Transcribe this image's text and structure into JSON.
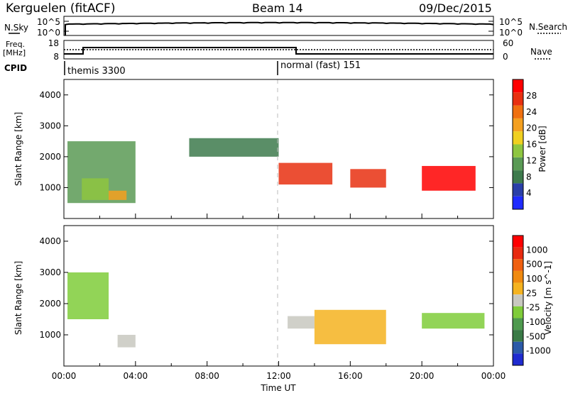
{
  "header": {
    "station": "Kerguelen (fitACF)",
    "beam": "Beam 14",
    "date": "09/Dec/2015"
  },
  "noise_panel": {
    "left_label": "N.Sky",
    "right_label": "N.Search",
    "left_ticks": [
      "10^5",
      "10^0"
    ],
    "right_ticks": [
      "10^5",
      "10^0"
    ]
  },
  "freq_panel": {
    "left_label_1": "Freq.",
    "left_label_2": "[MHz]",
    "right_label": "Nave",
    "left_ticks": [
      "18",
      "8"
    ],
    "right_ticks": [
      "60",
      "0"
    ]
  },
  "cpid": {
    "label": "CPID",
    "modes": [
      "themis 3300",
      "normal (fast) 151"
    ]
  },
  "x_axis": {
    "label": "Time UT",
    "ticks": [
      "00:00",
      "04:00",
      "08:00",
      "12:00",
      "16:00",
      "20:00",
      "00:00"
    ]
  },
  "colors": {
    "power": [
      "#1f2bff",
      "#2a3fa8",
      "#3d7a4c",
      "#5a9a55",
      "#8ec640",
      "#f0d020",
      "#f4a020",
      "#f07010",
      "#e83010",
      "#ff0000"
    ],
    "velocity": [
      "#1f2bd0",
      "#2b5aa8",
      "#3a7a46",
      "#4e9a4e",
      "#7fcc3a",
      "#c8c8c0",
      "#f5b320",
      "#f08a10",
      "#f06010",
      "#e82a10",
      "#ff0000"
    ]
  },
  "chart_data": [
    {
      "type": "heatmap",
      "title": "",
      "ylabel": "Slant Range [km]",
      "xlabel": "",
      "x_range_hours": [
        0,
        24
      ],
      "ylim": [
        0,
        4500
      ],
      "yticks": [
        "1000",
        "2000",
        "3000",
        "4000"
      ],
      "colorbar": {
        "label": "Power [dB]",
        "ticks": [
          "4",
          "8",
          "12",
          "16",
          "20",
          "24",
          "28"
        ],
        "range": [
          0,
          30
        ]
      },
      "regions": [
        {
          "t_start": 0.2,
          "t_end": 4.0,
          "r_start": 500,
          "r_end": 2500,
          "level": 10
        },
        {
          "t_start": 1.0,
          "t_end": 2.5,
          "r_start": 600,
          "r_end": 1300,
          "level": 14
        },
        {
          "t_start": 2.5,
          "t_end": 3.5,
          "r_start": 600,
          "r_end": 900,
          "level": 20
        },
        {
          "t_start": 7.0,
          "t_end": 12.0,
          "r_start": 2000,
          "r_end": 2600,
          "level": 8
        },
        {
          "t_start": 12.0,
          "t_end": 15.0,
          "r_start": 1100,
          "r_end": 1800,
          "level": 24
        },
        {
          "t_start": 16.0,
          "t_end": 18.0,
          "r_start": 1000,
          "r_end": 1600,
          "level": 26
        },
        {
          "t_start": 20.0,
          "t_end": 23.0,
          "r_start": 900,
          "r_end": 1700,
          "level": 30
        }
      ]
    },
    {
      "type": "heatmap",
      "title": "",
      "ylabel": "Slant Range [km]",
      "xlabel": "Time UT",
      "x_range_hours": [
        0,
        24
      ],
      "ylim": [
        0,
        4500
      ],
      "yticks": [
        "1000",
        "2000",
        "3000",
        "4000"
      ],
      "colorbar": {
        "label": "Velocity [m s^-1]",
        "ticks": [
          "1000",
          "500",
          "100",
          "25",
          "-25",
          "-100",
          "-500",
          "-1000"
        ],
        "range": [
          -1000,
          1000
        ]
      },
      "regions": [
        {
          "t_start": 0.2,
          "t_end": 2.5,
          "r_start": 1500,
          "r_end": 3000,
          "level": -200
        },
        {
          "t_start": 3.0,
          "t_end": 4.0,
          "r_start": 600,
          "r_end": 1000,
          "level": 0
        },
        {
          "t_start": 12.5,
          "t_end": 14.0,
          "r_start": 1200,
          "r_end": 1600,
          "level": 0
        },
        {
          "t_start": 14.0,
          "t_end": 18.0,
          "r_start": 700,
          "r_end": 1800,
          "level": 200
        },
        {
          "t_start": 20.0,
          "t_end": 23.5,
          "r_start": 1200,
          "r_end": 1700,
          "level": -150
        }
      ]
    }
  ]
}
